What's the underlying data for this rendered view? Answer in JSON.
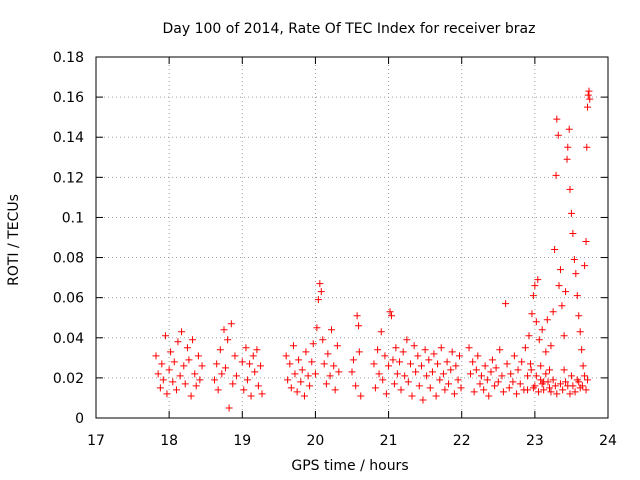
{
  "chart_data": {
    "type": "scatter",
    "title": "Day 100 of 2014, Rate Of TEC Index for receiver braz",
    "xlabel": "GPS time / hours",
    "ylabel": "ROTI / TECUs",
    "xlim": [
      17,
      24
    ],
    "ylim": [
      0,
      0.18
    ],
    "x_ticks": [
      "17",
      "18",
      "19",
      "20",
      "21",
      "22",
      "23",
      "24"
    ],
    "y_ticks": [
      "0",
      "0.02",
      "0.04",
      "0.06",
      "0.08",
      "0.1",
      "0.12",
      "0.14",
      "0.16",
      "0.18"
    ],
    "grid": true,
    "marker": "+",
    "color": "#ff0000",
    "series": [
      {
        "name": "ROTI",
        "points": [
          [
            17.82,
            0.031
          ],
          [
            17.85,
            0.022
          ],
          [
            17.88,
            0.015
          ],
          [
            17.9,
            0.027
          ],
          [
            17.92,
            0.019
          ],
          [
            17.95,
            0.041
          ],
          [
            17.97,
            0.012
          ],
          [
            18.0,
            0.024
          ],
          [
            18.02,
            0.033
          ],
          [
            18.05,
            0.018
          ],
          [
            18.07,
            0.028
          ],
          [
            18.1,
            0.014
          ],
          [
            18.12,
            0.038
          ],
          [
            18.15,
            0.021
          ],
          [
            18.17,
            0.043
          ],
          [
            18.2,
            0.026
          ],
          [
            18.22,
            0.017
          ],
          [
            18.25,
            0.035
          ],
          [
            18.27,
            0.029
          ],
          [
            18.3,
            0.011
          ],
          [
            18.32,
            0.039
          ],
          [
            18.35,
            0.022
          ],
          [
            18.37,
            0.016
          ],
          [
            18.4,
            0.031
          ],
          [
            18.42,
            0.019
          ],
          [
            18.45,
            0.026
          ],
          [
            18.62,
            0.019
          ],
          [
            18.65,
            0.027
          ],
          [
            18.67,
            0.014
          ],
          [
            18.7,
            0.034
          ],
          [
            18.72,
            0.022
          ],
          [
            18.75,
            0.044
          ],
          [
            18.77,
            0.025
          ],
          [
            18.8,
            0.039
          ],
          [
            18.82,
            0.005
          ],
          [
            18.85,
            0.047
          ],
          [
            18.87,
            0.017
          ],
          [
            18.9,
            0.031
          ],
          [
            18.92,
            0.021
          ],
          [
            19.0,
            0.028
          ],
          [
            19.02,
            0.014
          ],
          [
            19.05,
            0.035
          ],
          [
            19.07,
            0.019
          ],
          [
            19.1,
            0.027
          ],
          [
            19.12,
            0.011
          ],
          [
            19.15,
            0.031
          ],
          [
            19.17,
            0.023
          ],
          [
            19.2,
            0.034
          ],
          [
            19.22,
            0.016
          ],
          [
            19.25,
            0.026
          ],
          [
            19.27,
            0.012
          ],
          [
            19.6,
            0.031
          ],
          [
            19.62,
            0.019
          ],
          [
            19.65,
            0.027
          ],
          [
            19.67,
            0.015
          ],
          [
            19.7,
            0.036
          ],
          [
            19.72,
            0.022
          ],
          [
            19.75,
            0.013
          ],
          [
            19.77,
            0.029
          ],
          [
            19.8,
            0.018
          ],
          [
            19.82,
            0.024
          ],
          [
            19.85,
            0.011
          ],
          [
            19.87,
            0.033
          ],
          [
            19.9,
            0.021
          ],
          [
            19.92,
            0.016
          ],
          [
            19.95,
            0.028
          ],
          [
            19.97,
            0.037
          ],
          [
            20.0,
            0.022
          ],
          [
            20.02,
            0.045
          ],
          [
            20.04,
            0.059
          ],
          [
            20.06,
            0.067
          ],
          [
            20.08,
            0.063
          ],
          [
            20.1,
            0.039
          ],
          [
            20.12,
            0.027
          ],
          [
            20.15,
            0.017
          ],
          [
            20.17,
            0.032
          ],
          [
            20.2,
            0.021
          ],
          [
            20.22,
            0.044
          ],
          [
            20.25,
            0.026
          ],
          [
            20.27,
            0.014
          ],
          [
            20.3,
            0.036
          ],
          [
            20.32,
            0.023
          ],
          [
            20.5,
            0.023
          ],
          [
            20.52,
            0.029
          ],
          [
            20.55,
            0.016
          ],
          [
            20.57,
            0.051
          ],
          [
            20.59,
            0.046
          ],
          [
            20.6,
            0.033
          ],
          [
            20.62,
            0.011
          ],
          [
            20.8,
            0.027
          ],
          [
            20.82,
            0.015
          ],
          [
            20.85,
            0.034
          ],
          [
            20.87,
            0.022
          ],
          [
            20.9,
            0.043
          ],
          [
            20.92,
            0.019
          ],
          [
            20.95,
            0.031
          ],
          [
            20.97,
            0.012
          ],
          [
            21.0,
            0.026
          ],
          [
            21.02,
            0.053
          ],
          [
            21.04,
            0.051
          ],
          [
            21.06,
            0.029
          ],
          [
            21.08,
            0.017
          ],
          [
            21.1,
            0.035
          ],
          [
            21.12,
            0.022
          ],
          [
            21.15,
            0.028
          ],
          [
            21.17,
            0.014
          ],
          [
            21.2,
            0.033
          ],
          [
            21.22,
            0.021
          ],
          [
            21.25,
            0.039
          ],
          [
            21.27,
            0.018
          ],
          [
            21.3,
            0.027
          ],
          [
            21.32,
            0.011
          ],
          [
            21.35,
            0.036
          ],
          [
            21.37,
            0.023
          ],
          [
            21.4,
            0.031
          ],
          [
            21.42,
            0.016
          ],
          [
            21.45,
            0.026
          ],
          [
            21.47,
            0.009
          ],
          [
            21.5,
            0.034
          ],
          [
            21.52,
            0.021
          ],
          [
            21.55,
            0.029
          ],
          [
            21.57,
            0.015
          ],
          [
            21.6,
            0.023
          ],
          [
            21.62,
            0.032
          ],
          [
            21.65,
            0.011
          ],
          [
            21.67,
            0.027
          ],
          [
            21.7,
            0.019
          ],
          [
            21.72,
            0.035
          ],
          [
            21.75,
            0.022
          ],
          [
            21.77,
            0.014
          ],
          [
            21.8,
            0.028
          ],
          [
            21.82,
            0.017
          ],
          [
            21.85,
            0.024
          ],
          [
            21.87,
            0.033
          ],
          [
            21.9,
            0.012
          ],
          [
            21.92,
            0.026
          ],
          [
            21.95,
            0.019
          ],
          [
            21.97,
            0.031
          ],
          [
            21.99,
            0.015
          ],
          [
            22.1,
            0.035
          ],
          [
            22.12,
            0.022
          ],
          [
            22.15,
            0.028
          ],
          [
            22.17,
            0.013
          ],
          [
            22.2,
            0.024
          ],
          [
            22.22,
            0.031
          ],
          [
            22.25,
            0.017
          ],
          [
            22.27,
            0.021
          ],
          [
            22.3,
            0.014
          ],
          [
            22.32,
            0.026
          ],
          [
            22.35,
            0.019
          ],
          [
            22.37,
            0.011
          ],
          [
            22.4,
            0.023
          ],
          [
            22.42,
            0.029
          ],
          [
            22.45,
            0.016
          ],
          [
            22.47,
            0.025
          ],
          [
            22.5,
            0.018
          ],
          [
            22.52,
            0.034
          ],
          [
            22.55,
            0.021
          ],
          [
            22.57,
            0.013
          ],
          [
            22.6,
            0.057
          ],
          [
            22.62,
            0.027
          ],
          [
            22.65,
            0.015
          ],
          [
            22.67,
            0.022
          ],
          [
            22.7,
            0.018
          ],
          [
            22.72,
            0.031
          ],
          [
            22.75,
            0.012
          ],
          [
            22.77,
            0.024
          ],
          [
            22.8,
            0.017
          ],
          [
            22.82,
            0.028
          ],
          [
            22.85,
            0.014
          ],
          [
            22.87,
            0.035
          ],
          [
            22.9,
            0.021
          ],
          [
            22.92,
            0.041
          ],
          [
            22.94,
            0.027
          ],
          [
            22.96,
            0.052
          ],
          [
            22.98,
            0.061
          ],
          [
            23.0,
            0.066
          ],
          [
            23.02,
            0.048
          ],
          [
            23.04,
            0.069
          ],
          [
            23.06,
            0.039
          ],
          [
            23.08,
            0.026
          ],
          [
            23.1,
            0.044
          ],
          [
            23.12,
            0.018
          ],
          [
            23.15,
            0.033
          ],
          [
            23.17,
            0.049
          ],
          [
            23.2,
            0.024
          ],
          [
            23.22,
            0.036
          ],
          [
            23.25,
            0.053
          ],
          [
            23.27,
            0.084
          ],
          [
            23.29,
            0.121
          ],
          [
            23.3,
            0.149
          ],
          [
            23.32,
            0.141
          ],
          [
            23.33,
            0.066
          ],
          [
            23.35,
            0.074
          ],
          [
            23.37,
            0.056
          ],
          [
            23.4,
            0.041
          ],
          [
            23.42,
            0.063
          ],
          [
            23.44,
            0.129
          ],
          [
            23.45,
            0.135
          ],
          [
            23.47,
            0.144
          ],
          [
            23.48,
            0.114
          ],
          [
            23.5,
            0.102
          ],
          [
            23.52,
            0.092
          ],
          [
            23.54,
            0.079
          ],
          [
            23.56,
            0.072
          ],
          [
            23.58,
            0.061
          ],
          [
            23.6,
            0.051
          ],
          [
            23.62,
            0.043
          ],
          [
            23.64,
            0.034
          ],
          [
            23.66,
            0.026
          ],
          [
            23.68,
            0.076
          ],
          [
            23.7,
            0.088
          ],
          [
            23.71,
            0.135
          ],
          [
            23.72,
            0.155
          ],
          [
            23.73,
            0.161
          ],
          [
            23.74,
            0.163
          ],
          [
            23.75,
            0.159
          ],
          [
            23.72,
            0.019
          ],
          [
            23.7,
            0.014
          ],
          [
            23.6,
            0.018
          ],
          [
            23.55,
            0.013
          ],
          [
            23.5,
            0.021
          ],
          [
            23.45,
            0.016
          ],
          [
            23.4,
            0.024
          ],
          [
            23.35,
            0.017
          ],
          [
            23.3,
            0.012
          ],
          [
            23.25,
            0.019
          ],
          [
            23.2,
            0.015
          ],
          [
            23.15,
            0.022
          ],
          [
            23.1,
            0.017
          ],
          [
            23.05,
            0.013
          ],
          [
            23.0,
            0.016
          ],
          [
            22.95,
            0.024
          ],
          [
            22.9,
            0.014
          ],
          [
            23.65,
            0.016
          ],
          [
            23.68,
            0.021
          ],
          [
            23.62,
            0.015
          ],
          [
            23.58,
            0.019
          ],
          [
            23.52,
            0.016
          ],
          [
            23.48,
            0.012
          ],
          [
            23.42,
            0.018
          ],
          [
            23.38,
            0.014
          ],
          [
            23.28,
            0.016
          ],
          [
            23.22,
            0.013
          ],
          [
            23.18,
            0.018
          ],
          [
            23.12,
            0.014
          ],
          [
            23.08,
            0.019
          ],
          [
            23.02,
            0.021
          ],
          [
            22.98,
            0.015
          ]
        ]
      }
    ]
  }
}
